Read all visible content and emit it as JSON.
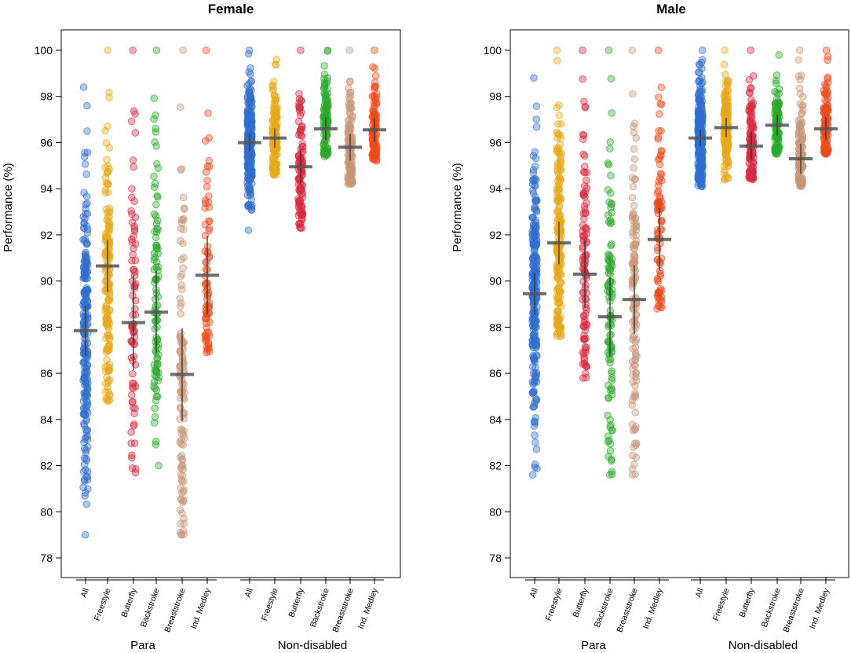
{
  "chart_data": [
    {
      "type": "scatter",
      "title": "Female",
      "ylabel": "Performance (%)",
      "ylim": [
        77.5,
        100.6
      ],
      "yticks": [
        78,
        80,
        82,
        84,
        86,
        88,
        90,
        92,
        94,
        96,
        98,
        100
      ],
      "groups": [
        {
          "label": "Para",
          "categories": [
            {
              "name": "All",
              "color": "#2f6fd0",
              "mean": 87.85,
              "range": [
                79.0,
                98.4
              ],
              "n": 230
            },
            {
              "name": "Freestyle",
              "color": "#e8a817",
              "mean": 90.65,
              "range": [
                84.8,
                100.0
              ],
              "n": 170
            },
            {
              "name": "Butterfly",
              "color": "#d92a3f",
              "mean": 88.2,
              "range": [
                81.7,
                100.0
              ],
              "n": 80
            },
            {
              "name": "Backstroke",
              "color": "#2aaa2a",
              "mean": 88.65,
              "range": [
                82.0,
                100.0
              ],
              "n": 100
            },
            {
              "name": "Breaststroke",
              "color": "#c99676",
              "mean": 85.95,
              "range": [
                79.0,
                100.0
              ],
              "n": 120
            },
            {
              "name": "Ind. Medley",
              "color": "#ef4a1a",
              "mean": 90.25,
              "range": [
                86.9,
                100.0
              ],
              "n": 80
            }
          ]
        },
        {
          "label": "Non-disabled",
          "categories": [
            {
              "name": "All",
              "color": "#2f6fd0",
              "mean": 96.0,
              "range": [
                92.2,
                100.0
              ],
              "n": 280
            },
            {
              "name": "Freestyle",
              "color": "#e8a817",
              "mean": 96.2,
              "range": [
                94.6,
                99.6
              ],
              "n": 160
            },
            {
              "name": "Butterfly",
              "color": "#d92a3f",
              "mean": 94.95,
              "range": [
                92.3,
                100.0
              ],
              "n": 110
            },
            {
              "name": "Backstroke",
              "color": "#2aaa2a",
              "mean": 96.6,
              "range": [
                95.4,
                100.0
              ],
              "n": 110
            },
            {
              "name": "Breaststroke",
              "color": "#c99676",
              "mean": 95.8,
              "range": [
                94.2,
                100.0
              ],
              "n": 130
            },
            {
              "name": "Ind. Medley",
              "color": "#ef4a1a",
              "mean": 96.55,
              "range": [
                95.2,
                100.0
              ],
              "n": 110
            }
          ]
        }
      ]
    },
    {
      "type": "scatter",
      "title": "Male",
      "ylabel": "Performance (%)",
      "ylim": [
        77.5,
        100.6
      ],
      "yticks": [
        78,
        80,
        82,
        84,
        86,
        88,
        90,
        92,
        94,
        96,
        98,
        100
      ],
      "groups": [
        {
          "label": "Para",
          "categories": [
            {
              "name": "All",
              "color": "#2f6fd0",
              "mean": 89.45,
              "range": [
                81.6,
                98.8
              ],
              "n": 260
            },
            {
              "name": "Freestyle",
              "color": "#e8a817",
              "mean": 91.65,
              "range": [
                87.6,
                100.0
              ],
              "n": 200
            },
            {
              "name": "Butterfly",
              "color": "#d92a3f",
              "mean": 90.3,
              "range": [
                85.8,
                100.0
              ],
              "n": 110
            },
            {
              "name": "Backstroke",
              "color": "#2aaa2a",
              "mean": 88.45,
              "range": [
                81.6,
                100.0
              ],
              "n": 110
            },
            {
              "name": "Breaststroke",
              "color": "#c99676",
              "mean": 89.2,
              "range": [
                81.6,
                100.0
              ],
              "n": 130
            },
            {
              "name": "Ind. Medley",
              "color": "#ef4a1a",
              "mean": 91.8,
              "range": [
                88.8,
                100.0
              ],
              "n": 90
            }
          ]
        },
        {
          "label": "Non-disabled",
          "categories": [
            {
              "name": "All",
              "color": "#2f6fd0",
              "mean": 96.2,
              "range": [
                94.1,
                100.0
              ],
              "n": 280
            },
            {
              "name": "Freestyle",
              "color": "#e8a817",
              "mean": 96.65,
              "range": [
                94.4,
                100.0
              ],
              "n": 160
            },
            {
              "name": "Butterfly",
              "color": "#d92a3f",
              "mean": 95.85,
              "range": [
                94.4,
                100.0
              ],
              "n": 110
            },
            {
              "name": "Backstroke",
              "color": "#2aaa2a",
              "mean": 96.75,
              "range": [
                95.5,
                99.8
              ],
              "n": 110
            },
            {
              "name": "Breaststroke",
              "color": "#c99676",
              "mean": 95.3,
              "range": [
                94.1,
                100.0
              ],
              "n": 130
            },
            {
              "name": "Ind. Medley",
              "color": "#ef4a1a",
              "mean": 96.6,
              "range": [
                95.5,
                100.0
              ],
              "n": 110
            }
          ]
        }
      ]
    }
  ]
}
